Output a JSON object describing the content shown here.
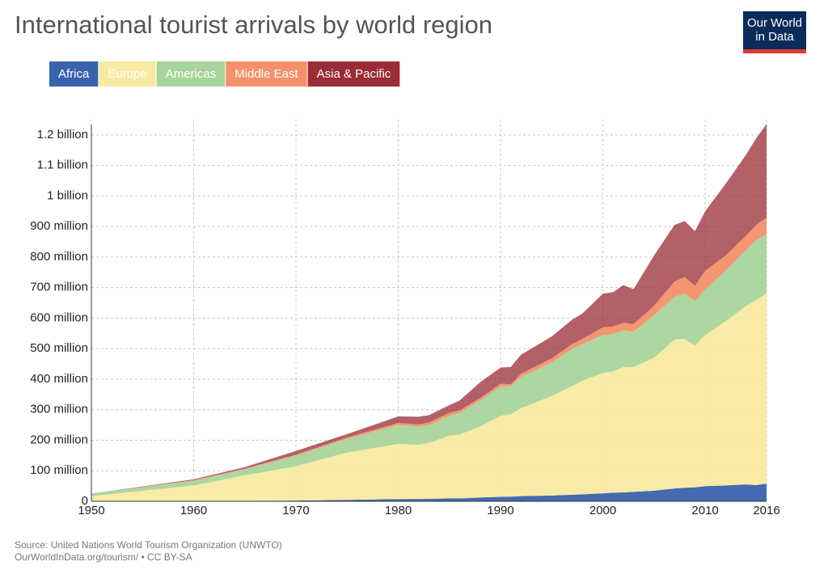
{
  "chart_data": {
    "type": "stacked_area",
    "title": "International tourist arrivals by world region",
    "logo": [
      "Our World",
      "in Data"
    ],
    "source": "Source: United Nations World Tourism Organization (UNWTO)",
    "credit": "OurWorldInData.org/tourism/ • CC BY-SA",
    "x": [
      1950,
      1960,
      1965,
      1970,
      1975,
      1980,
      1982,
      1983,
      1985,
      1986,
      1988,
      1990,
      1991,
      1992,
      1995,
      1997,
      1998,
      2000,
      2001,
      2002,
      2003,
      2005,
      2007,
      2008,
      2009,
      2010,
      2012,
      2014,
      2015,
      2016
    ],
    "xlim": [
      1950,
      2016
    ],
    "xticks": [
      1950,
      1960,
      1970,
      1980,
      1990,
      2000,
      2010,
      2016
    ],
    "ylim": [
      0,
      1250000000
    ],
    "yticks": [
      0,
      {
        "value": 100000000,
        "label": "100 million"
      },
      {
        "value": 200000000,
        "label": "200 million"
      },
      {
        "value": 300000000,
        "label": "300 million"
      },
      {
        "value": 400000000,
        "label": "400 million"
      },
      {
        "value": 500000000,
        "label": "500 million"
      },
      {
        "value": 600000000,
        "label": "600 million"
      },
      {
        "value": 700000000,
        "label": "700 million"
      },
      {
        "value": 800000000,
        "label": "800 million"
      },
      {
        "value": 900000000,
        "label": "900 million"
      },
      {
        "value": 1000000000,
        "label": "1 billion"
      },
      {
        "value": 1100000000,
        "label": "1.1 billion"
      },
      {
        "value": 1200000000,
        "label": "1.2 billion"
      }
    ],
    "grid": true,
    "series": [
      {
        "name": "Africa",
        "color": "#3a63ad",
        "values": [
          500000,
          800000,
          1400000,
          2400000,
          4700000,
          7200000,
          7700000,
          8000000,
          9700000,
          9400000,
          12500000,
          14700000,
          15200000,
          16900000,
          18800000,
          21500000,
          22900000,
          26200000,
          28200000,
          29100000,
          30700000,
          34800000,
          42100000,
          44200000,
          45600000,
          49600000,
          51900000,
          55200000,
          53400000,
          57800000
        ]
      },
      {
        "name": "Europe",
        "color": "#f8eaa2",
        "values": [
          16500000,
          51200000,
          83600000,
          112600000,
          155300000,
          180800000,
          177300000,
          184000000,
          205300000,
          208600000,
          232500000,
          265300000,
          269800000,
          288100000,
          326200000,
          356500000,
          372100000,
          393800000,
          396800000,
          410900000,
          409300000,
          435200000,
          487900000,
          487800000,
          464400000,
          495400000,
          538100000,
          584800000,
          606600000,
          622200000
        ]
      },
      {
        "name": "Americas",
        "color": "#a9d49b",
        "values": [
          8000000,
          16000000,
          20000000,
          35000000,
          45000000,
          62000000,
          60000000,
          58000000,
          65000000,
          72000000,
          85000000,
          95000000,
          93000000,
          103000000,
          110000000,
          122000000,
          120000000,
          125000000,
          123000000,
          120000000,
          115000000,
          140000000,
          140000000,
          148000000,
          145000000,
          150000000,
          165000000,
          185000000,
          195000000,
          195000000
        ]
      },
      {
        "name": "Middle East",
        "color": "#f4906a",
        "values": [
          200000,
          1000000,
          2000000,
          3000000,
          4000000,
          7000000,
          7000000,
          8000000,
          10000000,
          8000000,
          8000000,
          10000000,
          5000000,
          10000000,
          13000000,
          15000000,
          17000000,
          25000000,
          24000000,
          25000000,
          25000000,
          30000000,
          50000000,
          55000000,
          50000000,
          60000000,
          50000000,
          45000000,
          50000000,
          55000000
        ]
      },
      {
        "name": "Asia & Pacific",
        "color": "#9b2b35",
        "values": [
          200000,
          3000000,
          5000000,
          12000000,
          11000000,
          21000000,
          25000000,
          24000000,
          25000000,
          32000000,
          52000000,
          53000000,
          57000000,
          62000000,
          72000000,
          80000000,
          83000000,
          110000000,
          113000000,
          123000000,
          115000000,
          165000000,
          185000000,
          183000000,
          180000000,
          195000000,
          235000000,
          265000000,
          285000000,
          305000000
        ]
      }
    ]
  }
}
